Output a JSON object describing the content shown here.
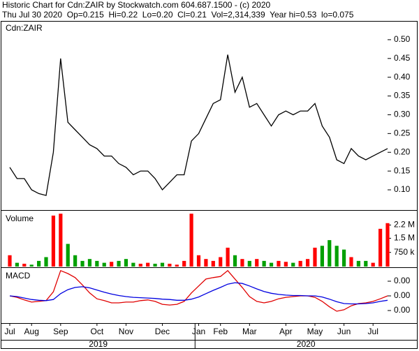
{
  "header": {
    "line1": "Historic Chart for Cdn:ZAIR by Stockwatch.com 604.687.1500 - (c) 2020",
    "line2": "Thu Jul 30 2020  Op=0.215  Hi=0.22  Lo=0.20  Cl=0.21  Vol=2,314,339  Year hi=0.53  lo=0.075"
  },
  "chart_data": [
    {
      "type": "line",
      "title": "Cdn:ZAIR",
      "categories": [
        "Jul",
        null,
        null,
        "Aug",
        null,
        null,
        null,
        "Sep",
        null,
        null,
        null,
        null,
        "Oct",
        null,
        null,
        null,
        "Nov",
        null,
        null,
        null,
        null,
        "Dec",
        null,
        null,
        null,
        null,
        "Jan",
        null,
        null,
        "Feb",
        null,
        null,
        null,
        "Mar",
        null,
        null,
        null,
        null,
        "Apr",
        null,
        null,
        null,
        "May",
        null,
        null,
        null,
        "Jun",
        null,
        null,
        null,
        "Jul",
        null,
        null
      ],
      "x_groups": [
        {
          "label": "2019",
          "count": 26
        },
        {
          "label": "2020",
          "count": 27
        }
      ],
      "series": [
        {
          "color": "#000000",
          "values": [
            0.16,
            0.13,
            0.13,
            0.1,
            0.09,
            0.085,
            0.2,
            0.45,
            0.28,
            0.26,
            0.24,
            0.22,
            0.21,
            0.19,
            0.19,
            0.17,
            0.16,
            0.14,
            0.15,
            0.15,
            0.13,
            0.1,
            0.12,
            0.14,
            0.14,
            0.23,
            0.25,
            0.29,
            0.33,
            0.34,
            0.46,
            0.36,
            0.4,
            0.32,
            0.33,
            0.3,
            0.27,
            0.3,
            0.31,
            0.3,
            0.31,
            0.31,
            0.33,
            0.27,
            0.24,
            0.18,
            0.17,
            0.21,
            0.19,
            0.18,
            0.19,
            0.2,
            0.21
          ]
        }
      ],
      "ylim": [
        0.048,
        0.55
      ],
      "yticks": [
        {
          "value": 0.1,
          "label": "0.10"
        },
        0.15,
        {
          "value": 0.2,
          "label": "0.20"
        },
        0.25,
        {
          "value": 0.3,
          "label": "0.30"
        },
        0.35,
        {
          "value": 0.4,
          "label": "0.40"
        },
        0.45,
        {
          "value": 0.5,
          "label": "0.50"
        }
      ]
    },
    {
      "type": "bar",
      "title": "Volume",
      "up_color": "#ff0000",
      "down_color": "#00a000",
      "values": [
        600000,
        200000,
        150000,
        100000,
        300000,
        500000,
        2700000,
        2800000,
        1200000,
        600000,
        300000,
        400000,
        300000,
        200000,
        250000,
        300000,
        400000,
        200000,
        150000,
        200000,
        150000,
        200000,
        150000,
        100000,
        300000,
        2800000,
        600000,
        400000,
        300000,
        500000,
        1000000,
        600000,
        400000,
        300000,
        400000,
        300000,
        200000,
        300000,
        250000,
        200000,
        300000,
        400000,
        1000000,
        1100000,
        1400000,
        1100000,
        900000,
        500000,
        300000,
        300000,
        200000,
        2000000,
        2300000
      ],
      "ylim": [
        0,
        2920000
      ],
      "yticks": [
        {
          "value": 2200000,
          "label": "2.2 M"
        },
        {
          "value": 1500000,
          "label": "1.5 M"
        },
        {
          "value": 750000,
          "label": "750 k"
        }
      ]
    },
    {
      "type": "line",
      "title": "MACD",
      "series": [
        {
          "color": "#e00000",
          "values": [
            0,
            -0.0004,
            -0.0011,
            -0.0017,
            -0.0015,
            -0.0013,
            0.0011,
            0.0069,
            0.0061,
            0.005,
            0.003,
            0.0008,
            -0.0008,
            -0.0013,
            -0.0019,
            -0.0019,
            -0.0017,
            -0.0017,
            -0.0013,
            -0.0011,
            -0.0015,
            -0.0023,
            -0.0025,
            -0.0023,
            -0.0015,
            0.0008,
            0.0027,
            0.0046,
            0.005,
            0.0053,
            0.0069,
            0.0046,
            0.0023,
            -0.0002,
            -0.0015,
            -0.0019,
            -0.0015,
            -0.0008,
            -0.0004,
            -0.0002,
            0,
            0,
            -0.0004,
            -0.0015,
            -0.003,
            -0.0042,
            -0.0038,
            -0.0027,
            -0.0021,
            -0.0019,
            -0.0015,
            -0.0008,
            0
          ]
        },
        {
          "color": "#0000e0",
          "values": [
            0,
            -0.0002,
            -0.0006,
            -0.001,
            -0.0012,
            -0.0013,
            -0.001,
            0.0006,
            0.0017,
            0.0023,
            0.0025,
            0.0022,
            0.0016,
            0.001,
            0.0005,
            0.0001,
            -0.0002,
            -0.0004,
            -0.0005,
            -0.0006,
            -0.0007,
            -0.0009,
            -0.001,
            -0.0012,
            -0.0012,
            -0.0009,
            -0.0003,
            0.0006,
            0.0015,
            0.0023,
            0.0032,
            0.0036,
            0.0034,
            0.0027,
            0.0019,
            0.0012,
            0.0007,
            0.0004,
            0.0002,
            0.0001,
            0.0001,
            0,
            0,
            -0.0003,
            -0.0009,
            -0.0016,
            -0.0021,
            -0.0022,
            -0.0022,
            -0.0021,
            -0.0019,
            -0.0015,
            -0.0012
          ]
        }
      ],
      "ylim": [
        -0.00724,
        0.00743
      ],
      "yticks": [
        {
          "value": 0.004,
          "label": "0.00"
        },
        {
          "value": 0,
          "label": "0.00"
        },
        {
          "value": -0.004,
          "label": "0.00"
        }
      ]
    }
  ]
}
